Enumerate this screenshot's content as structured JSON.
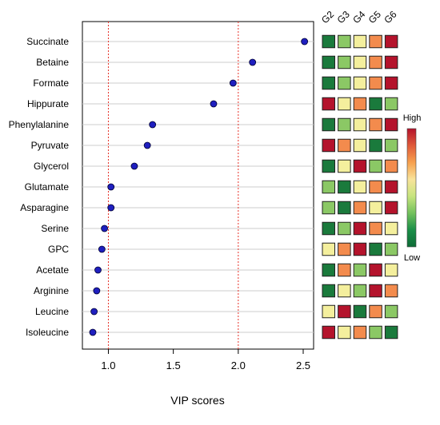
{
  "chart_data": {
    "type": "scatter",
    "title": "",
    "xlabel": "VIP scores",
    "ylabel": "",
    "xlim": [
      0.8,
      2.58
    ],
    "x_ticks": [
      "1.0",
      "1.5",
      "2.0",
      "2.5"
    ],
    "reference_lines": [
      1.0,
      2.0
    ],
    "grid": "horizontal",
    "categories": [
      "Succinate",
      "Betaine",
      "Formate",
      "Hippurate",
      "Phenylalanine",
      "Pyruvate",
      "Glycerol",
      "Glutamate",
      "Asparagine",
      "Serine",
      "GPC",
      "Acetate",
      "Arginine",
      "Leucine",
      "Isoleucine"
    ],
    "series": [
      {
        "values": [
          2.51,
          2.11,
          1.96,
          1.81,
          1.34,
          1.3,
          1.2,
          1.02,
          1.02,
          0.97,
          0.95,
          0.92,
          0.91,
          0.89,
          0.88
        ]
      }
    ],
    "point_color": "#1f1fbf",
    "heatmap": {
      "groups": [
        "G2",
        "G3",
        "G4",
        "G5",
        "G6"
      ],
      "levels": [
        [
          1,
          2,
          3,
          4,
          5
        ],
        [
          1,
          2,
          3,
          4,
          5
        ],
        [
          1,
          2,
          3,
          4,
          5
        ],
        [
          5,
          3,
          4,
          1,
          2
        ],
        [
          1,
          2,
          3,
          4,
          5
        ],
        [
          5,
          4,
          3,
          1,
          2
        ],
        [
          1,
          3,
          5,
          2,
          4
        ],
        [
          2,
          1,
          3,
          4,
          5
        ],
        [
          2,
          1,
          4,
          3,
          5
        ],
        [
          1,
          2,
          5,
          4,
          3
        ],
        [
          3,
          4,
          5,
          1,
          2
        ],
        [
          1,
          4,
          2,
          5,
          3
        ],
        [
          1,
          3,
          2,
          5,
          4
        ],
        [
          3,
          5,
          1,
          4,
          2
        ],
        [
          5,
          3,
          4,
          2,
          1
        ]
      ],
      "palette": [
        "#1a7a3c",
        "#8bc865",
        "#f4ef9d",
        "#f38b4d",
        "#b4132c"
      ]
    },
    "color_key": {
      "high_label": "High",
      "low_label": "Low",
      "colors": [
        "#b4132c",
        "#e05a3a",
        "#f7a04d",
        "#f8e39a",
        "#c7e47e",
        "#73c15d",
        "#1a8f48",
        "#0e6b36"
      ]
    }
  }
}
